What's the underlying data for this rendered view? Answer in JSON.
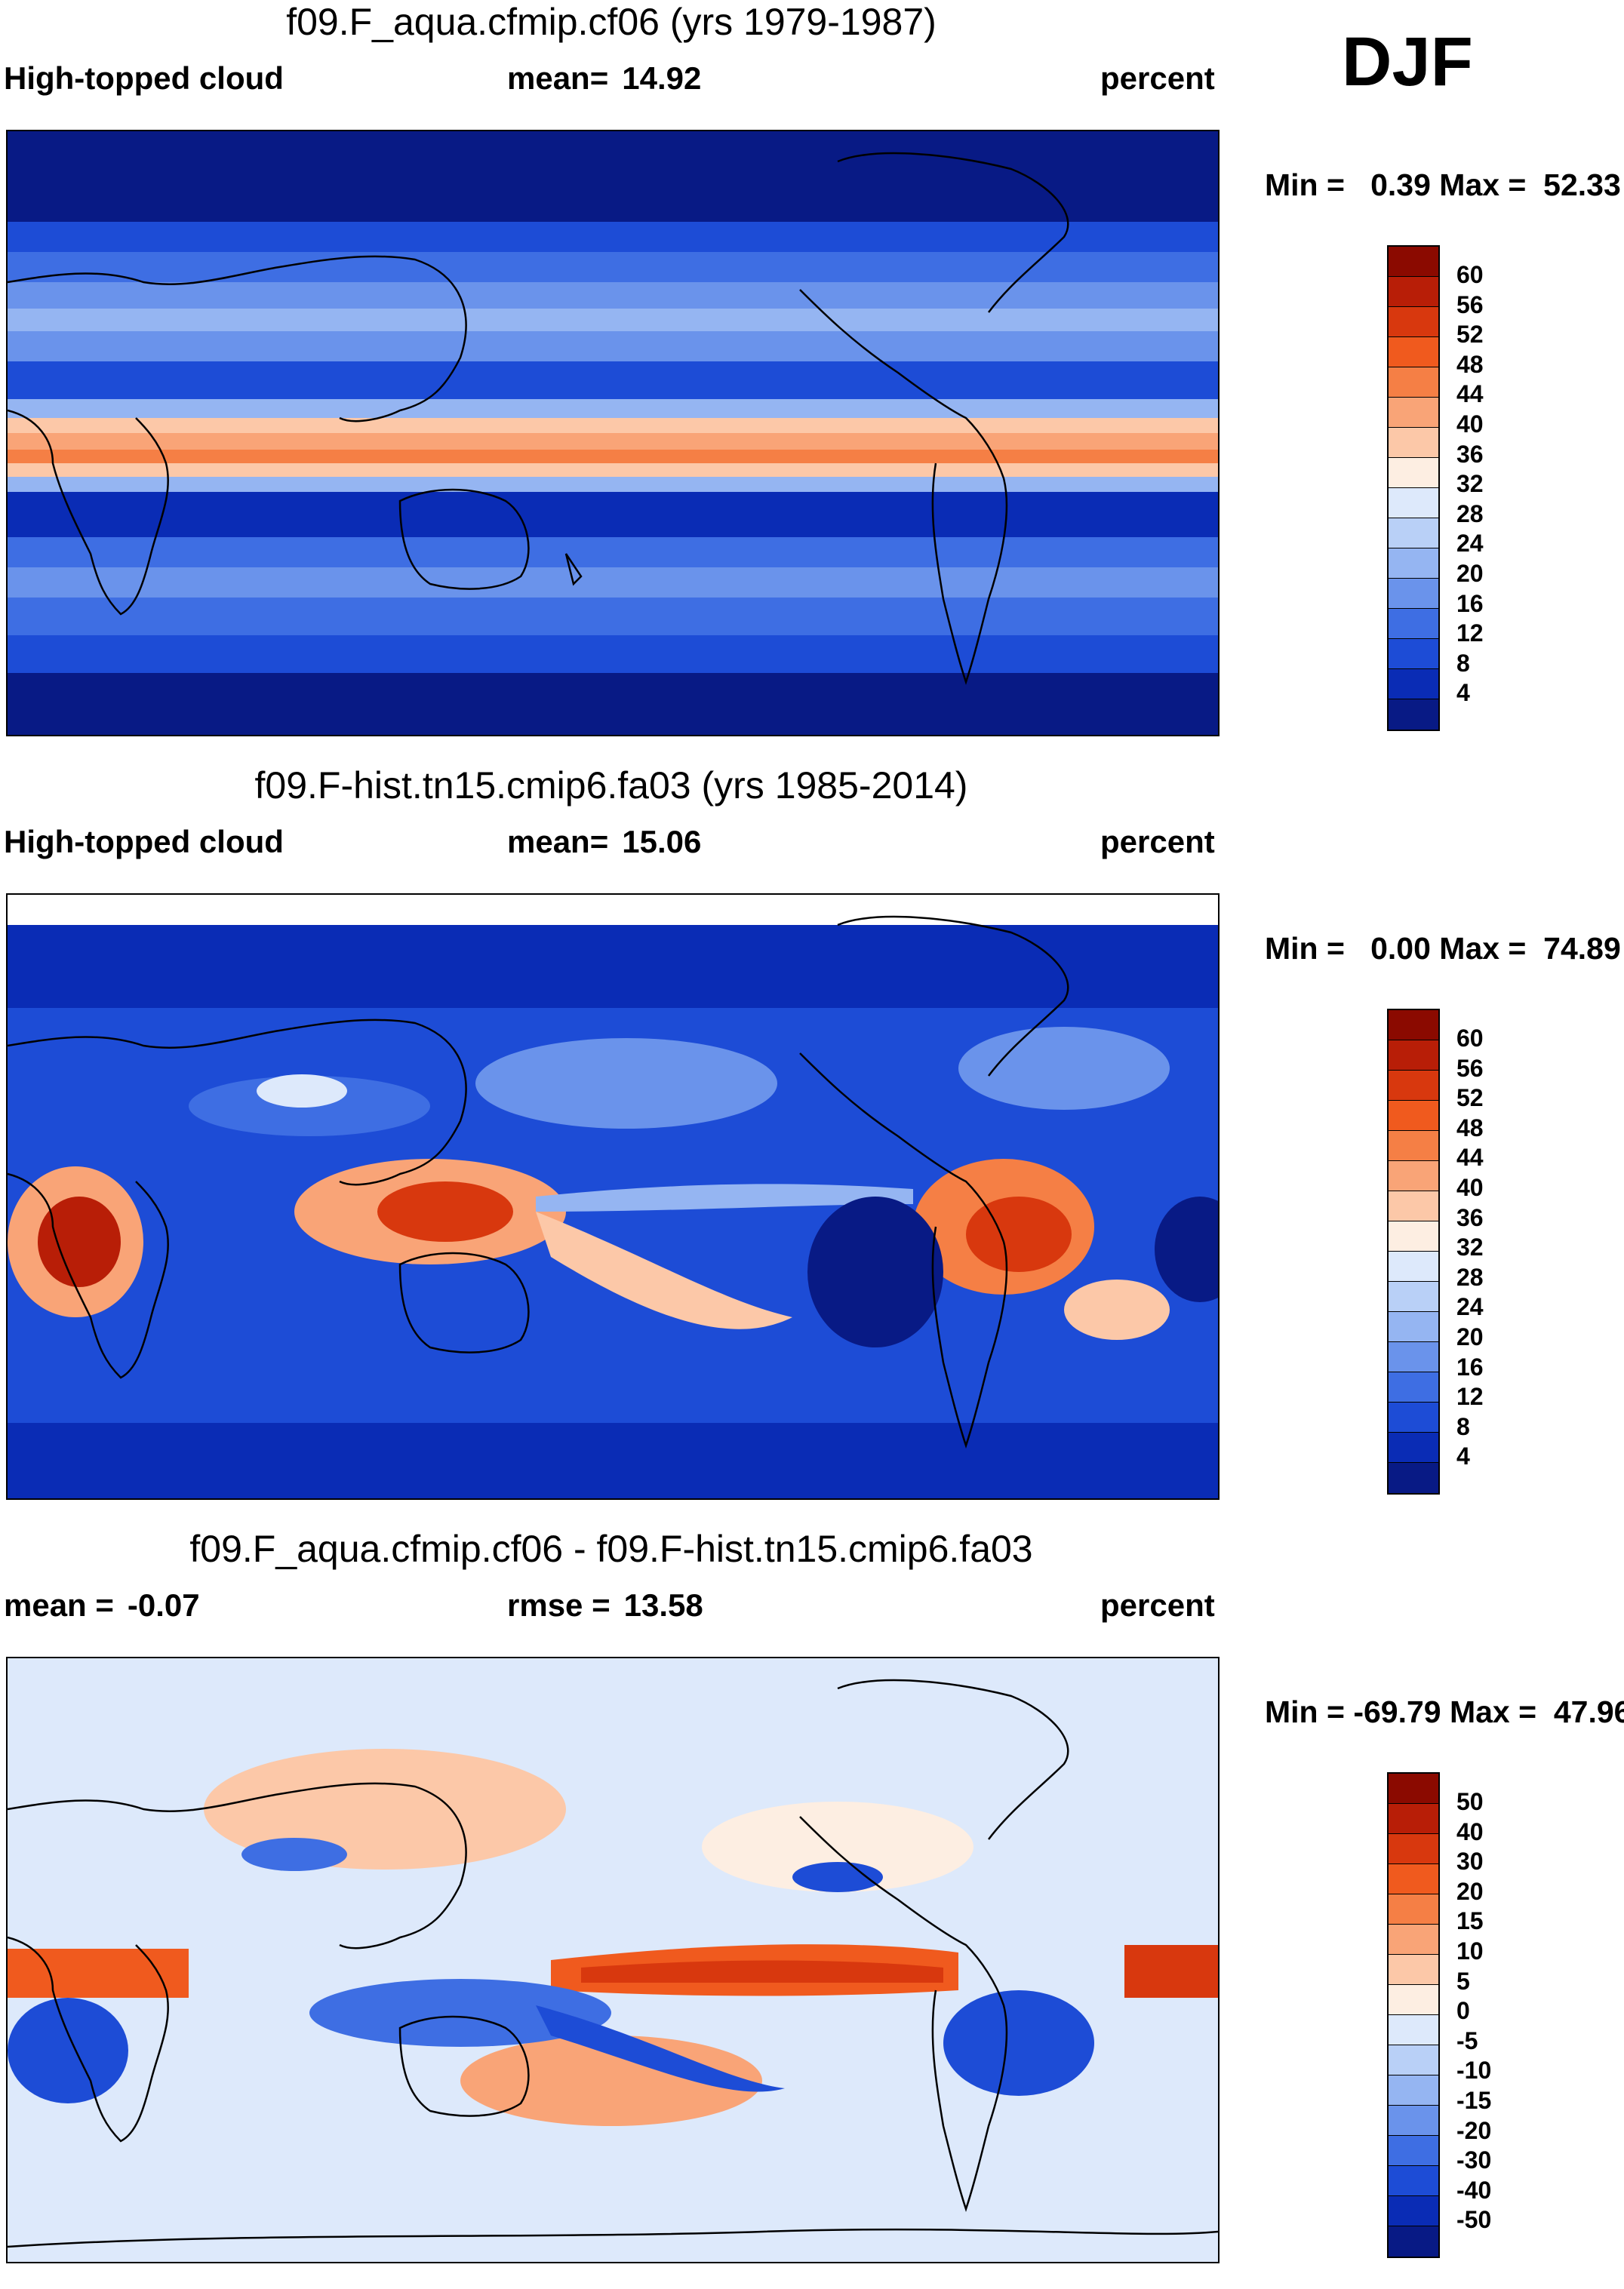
{
  "season": "DJF",
  "chart_data": [
    {
      "type": "heatmap",
      "title": "f09.F_aqua.cfmip.cf06 (yrs 1979-1987)",
      "left_label": "High-topped cloud",
      "center_label": "mean=",
      "center_value": "14.92",
      "right_label": "percent",
      "min_max": "Min =   0.39 Max =  52.33",
      "colorbar_ticks": [
        "60",
        "56",
        "52",
        "48",
        "44",
        "40",
        "36",
        "32",
        "28",
        "24",
        "20",
        "16",
        "12",
        "8",
        "4"
      ],
      "colorbar_colors": [
        "#8b0a00",
        "#b81e07",
        "#d8380e",
        "#f05a1e",
        "#f57f45",
        "#f9a477",
        "#fcc8a8",
        "#fdeee2",
        "#dde9fb",
        "#b9d0f7",
        "#95b5f2",
        "#6a93eb",
        "#3e6ee3",
        "#1d4cd6",
        "#0a2cb5",
        "#081a85"
      ],
      "pattern": "zonal-bands"
    },
    {
      "type": "heatmap",
      "title": "f09.F-hist.tn15.cmip6.fa03 (yrs 1985-2014)",
      "left_label": "High-topped cloud",
      "center_label": "mean=",
      "center_value": "15.06",
      "right_label": "percent",
      "min_max": "Min =   0.00 Max =  74.89",
      "colorbar_ticks": [
        "60",
        "56",
        "52",
        "48",
        "44",
        "40",
        "36",
        "32",
        "28",
        "24",
        "20",
        "16",
        "12",
        "8",
        "4"
      ],
      "colorbar_colors": [
        "#8b0a00",
        "#b81e07",
        "#d8380e",
        "#f05a1e",
        "#f57f45",
        "#f9a477",
        "#fcc8a8",
        "#fdeee2",
        "#dde9fb",
        "#b9d0f7",
        "#95b5f2",
        "#6a93eb",
        "#3e6ee3",
        "#1d4cd6",
        "#0a2cb5",
        "#081a85"
      ],
      "pattern": "observed"
    },
    {
      "type": "heatmap",
      "title": "f09.F_aqua.cfmip.cf06 - f09.F-hist.tn15.cmip6.fa03",
      "left_label": "mean =",
      "left_value": "-0.07",
      "center_label": "rmse =",
      "center_value": "13.58",
      "right_label": "percent",
      "min_max": "Min = -69.79 Max =  47.96",
      "colorbar_ticks": [
        "50",
        "40",
        "30",
        "20",
        "15",
        "10",
        "5",
        "0",
        "-5",
        "-10",
        "-15",
        "-20",
        "-30",
        "-40",
        "-50"
      ],
      "colorbar_colors": [
        "#8b0a00",
        "#b81e07",
        "#d8380e",
        "#f05a1e",
        "#f57f45",
        "#f9a477",
        "#fcc8a8",
        "#fdeee2",
        "#dde9fb",
        "#b9d0f7",
        "#95b5f2",
        "#6a93eb",
        "#3e6ee3",
        "#1d4cd6",
        "#0a2cb5",
        "#081a85"
      ],
      "pattern": "difference"
    }
  ]
}
